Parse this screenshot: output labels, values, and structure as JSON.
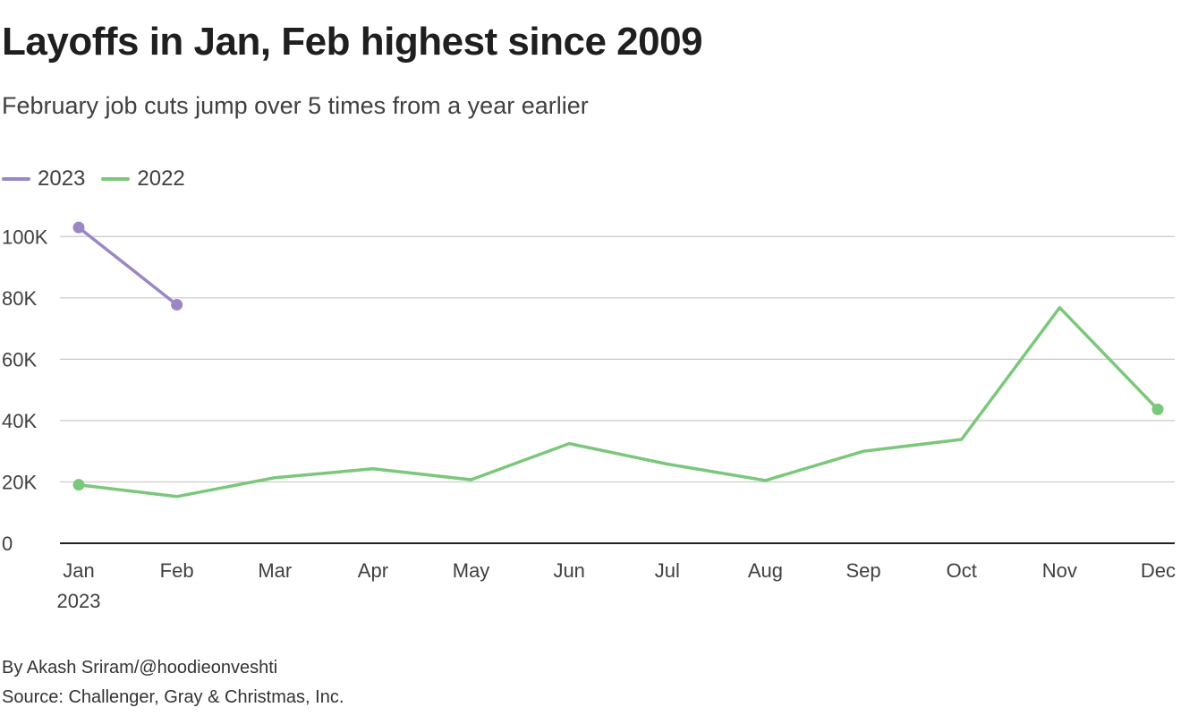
{
  "chart_data": {
    "type": "line",
    "title": "Layoffs in Jan, Feb highest since 2009",
    "subtitle": "February job cuts jump over 5 times from a year earlier",
    "categories": [
      "Jan",
      "Feb",
      "Mar",
      "Apr",
      "May",
      "Jun",
      "Jul",
      "Aug",
      "Sep",
      "Oct",
      "Nov",
      "Dec"
    ],
    "x_sublabel": "2023",
    "series": [
      {
        "name": "2023",
        "color": "#9b87c4",
        "values": [
          102943,
          77770,
          null,
          null,
          null,
          null,
          null,
          null,
          null,
          null,
          null,
          null
        ]
      },
      {
        "name": "2022",
        "color": "#7bc77b",
        "values": [
          19064,
          15245,
          21387,
          24286,
          20712,
          32517,
          25810,
          20485,
          29989,
          33843,
          76835,
          43651
        ]
      }
    ],
    "ylim": [
      0,
      110000
    ],
    "yticks": [
      0,
      20000,
      40000,
      60000,
      80000,
      100000
    ],
    "ytick_labels": [
      "0",
      "20K",
      "40K",
      "60K",
      "80K",
      "100K"
    ],
    "legend_position": "top-left",
    "grid": true
  },
  "footer": {
    "byline": "By Akash Sriram/@hoodieonveshti",
    "source": "Source: Challenger, Gray & Christmas, Inc."
  }
}
